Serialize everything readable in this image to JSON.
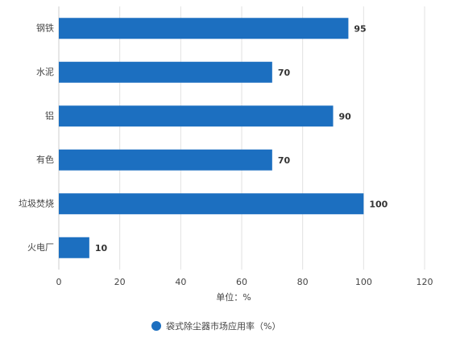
{
  "chart_data": {
    "type": "bar",
    "categories": [
      "钢铁",
      "水泥",
      "铝",
      "有色",
      "垃圾焚烧",
      "火电厂"
    ],
    "series": [
      {
        "name": "袋式除尘器市场应用率（%）",
        "color": "#1c6fc0",
        "values": [
          95,
          70,
          90,
          70,
          100,
          10
        ]
      }
    ],
    "xlim": [
      0,
      120
    ],
    "xticks": [
      0,
      20,
      40,
      60,
      80,
      100,
      120
    ],
    "xlabel": "单位：%",
    "grid": true
  }
}
